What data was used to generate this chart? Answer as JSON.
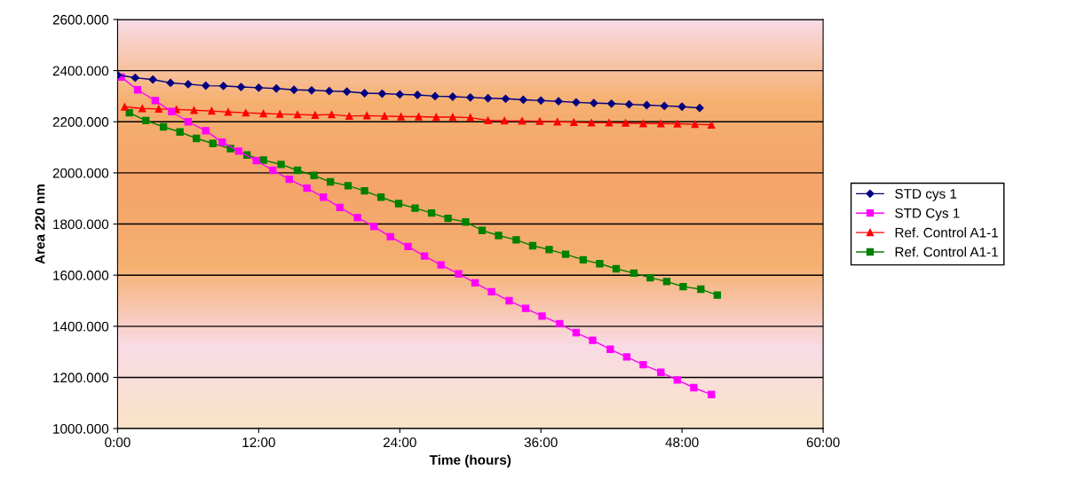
{
  "chart_data": {
    "type": "line",
    "xlabel": "Time (hours)",
    "ylabel": "Area 220 nm",
    "xlim": [
      0,
      60
    ],
    "xticks": [
      {
        "value": 0,
        "label": "0:00"
      },
      {
        "value": 12,
        "label": "12:00"
      },
      {
        "value": 24,
        "label": "24:00"
      },
      {
        "value": 36,
        "label": "36:00"
      },
      {
        "value": 48,
        "label": "48:00"
      },
      {
        "value": 60,
        "label": "60:00"
      }
    ],
    "ylim": [
      1000,
      2600
    ],
    "yticks": [
      {
        "value": 1000,
        "label": "1000.000"
      },
      {
        "value": 1200,
        "label": "1200.000"
      },
      {
        "value": 1400,
        "label": "1400.000"
      },
      {
        "value": 1600,
        "label": "1600.000"
      },
      {
        "value": 1800,
        "label": "1800.000"
      },
      {
        "value": 2000,
        "label": "2000.000"
      },
      {
        "value": 2200,
        "label": "2200.000"
      },
      {
        "value": 2400,
        "label": "2400.000"
      },
      {
        "value": 2600,
        "label": "2600.000"
      }
    ],
    "grid": "y",
    "legend": "right",
    "line_style": "solid",
    "series": [
      {
        "name": "STD cys 1",
        "color": "#000080",
        "marker": "diamond",
        "x": [
          0,
          1.5,
          3,
          4.5,
          6,
          7.5,
          9,
          10.5,
          12,
          13.5,
          15,
          16.5,
          18,
          19.5,
          21,
          22.5,
          24,
          25.5,
          27,
          28.5,
          30,
          31.5,
          33,
          34.5,
          36,
          37.5,
          39,
          40.5,
          42,
          43.5,
          45,
          46.5,
          48,
          49.5
        ],
        "values": [
          2383,
          2372,
          2365,
          2352,
          2347,
          2341,
          2340,
          2336,
          2333,
          2330,
          2325,
          2323,
          2320,
          2318,
          2312,
          2310,
          2307,
          2305,
          2300,
          2298,
          2295,
          2292,
          2290,
          2286,
          2283,
          2280,
          2276,
          2273,
          2271,
          2268,
          2265,
          2262,
          2259,
          2254
        ]
      },
      {
        "name": "STD Cys 1",
        "color": "#ff00ff",
        "marker": "square",
        "x": [
          0.3,
          1.7,
          3.2,
          4.6,
          6.0,
          7.5,
          8.9,
          10.3,
          11.8,
          13.2,
          14.6,
          16.1,
          17.5,
          18.9,
          20.4,
          21.8,
          23.2,
          24.7,
          26.1,
          27.5,
          29.0,
          30.4,
          31.8,
          33.3,
          34.7,
          36.1,
          37.6,
          39.0,
          40.4,
          41.9,
          43.3,
          44.7,
          46.2,
          47.6,
          49.0,
          50.5
        ],
        "values": [
          2375,
          2325,
          2283,
          2240,
          2200,
          2165,
          2120,
          2085,
          2048,
          2010,
          1975,
          1940,
          1905,
          1865,
          1825,
          1790,
          1750,
          1712,
          1675,
          1640,
          1605,
          1570,
          1535,
          1500,
          1470,
          1440,
          1410,
          1375,
          1345,
          1310,
          1280,
          1250,
          1220,
          1190,
          1160,
          1133
        ]
      },
      {
        "name": "Ref. Control A1-1",
        "color": "#ff0000",
        "marker": "triangle",
        "x": [
          0.6,
          2.1,
          3.5,
          5.0,
          6.5,
          8.0,
          9.4,
          10.9,
          12.4,
          13.8,
          15.3,
          16.8,
          18.2,
          19.7,
          21.2,
          22.7,
          24.1,
          25.6,
          27.1,
          28.5,
          30.0,
          31.5,
          32.9,
          34.4,
          35.9,
          37.4,
          38.8,
          40.3,
          41.8,
          43.2,
          44.7,
          46.2,
          47.6,
          49.1,
          50.5
        ],
        "values": [
          2258,
          2252,
          2250,
          2248,
          2245,
          2242,
          2238,
          2235,
          2232,
          2230,
          2228,
          2226,
          2228,
          2222,
          2224,
          2222,
          2220,
          2220,
          2218,
          2218,
          2216,
          2205,
          2204,
          2203,
          2202,
          2200,
          2198,
          2196,
          2196,
          2195,
          2193,
          2193,
          2192,
          2190,
          2188
        ]
      },
      {
        "name": "Ref. Control A1-1",
        "color": "#008000",
        "marker": "square",
        "x": [
          1.0,
          2.4,
          3.9,
          5.3,
          6.7,
          8.1,
          9.6,
          11.0,
          12.4,
          13.9,
          15.3,
          16.7,
          18.1,
          19.6,
          21.0,
          22.4,
          23.9,
          25.3,
          26.7,
          28.1,
          29.6,
          31.0,
          32.4,
          33.9,
          35.3,
          36.7,
          38.1,
          39.6,
          41.0,
          42.4,
          43.9,
          45.3,
          46.7,
          48.1,
          49.6,
          51.0
        ],
        "values": [
          2235,
          2205,
          2180,
          2160,
          2135,
          2115,
          2095,
          2070,
          2050,
          2033,
          2010,
          1990,
          1965,
          1950,
          1930,
          1905,
          1880,
          1862,
          1843,
          1822,
          1808,
          1775,
          1755,
          1738,
          1715,
          1700,
          1682,
          1660,
          1645,
          1625,
          1608,
          1590,
          1575,
          1555,
          1545,
          1522
        ]
      }
    ]
  }
}
